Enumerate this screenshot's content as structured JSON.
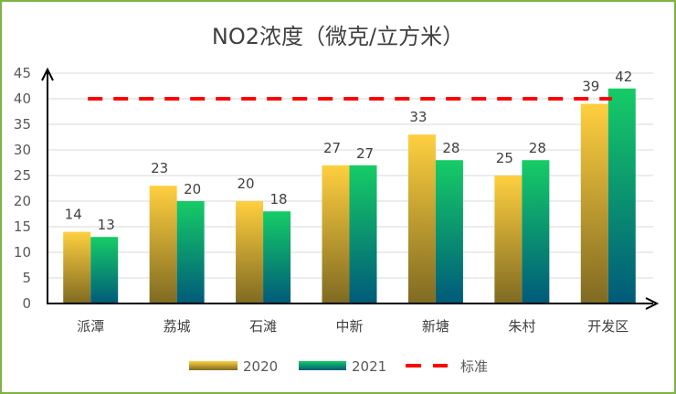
{
  "chart_data": {
    "type": "bar",
    "title": "NO2浓度（微克/立方米）",
    "categories": [
      "派潭",
      "荔城",
      "石滩",
      "中新",
      "新塘",
      "朱村",
      "开发区"
    ],
    "series": [
      {
        "name": "2020",
        "values": [
          14,
          23,
          20,
          27,
          33,
          25,
          39
        ],
        "color_top": "#ffcf3f",
        "color_bottom": "#7f6a22"
      },
      {
        "name": "2021",
        "values": [
          13,
          20,
          18,
          27,
          28,
          28,
          42
        ],
        "color_top": "#16cc66",
        "color_bottom": "#005a7a"
      }
    ],
    "reference_line": {
      "name": "标准",
      "value": 40,
      "color": "#ff0000",
      "style": "dashed"
    },
    "ylim": [
      0,
      45
    ],
    "yticks": [
      0,
      5,
      10,
      15,
      20,
      25,
      30,
      35,
      40,
      45
    ],
    "grid": true,
    "legend": "bottom",
    "data_labels": true,
    "border_color": "#7cb342"
  }
}
